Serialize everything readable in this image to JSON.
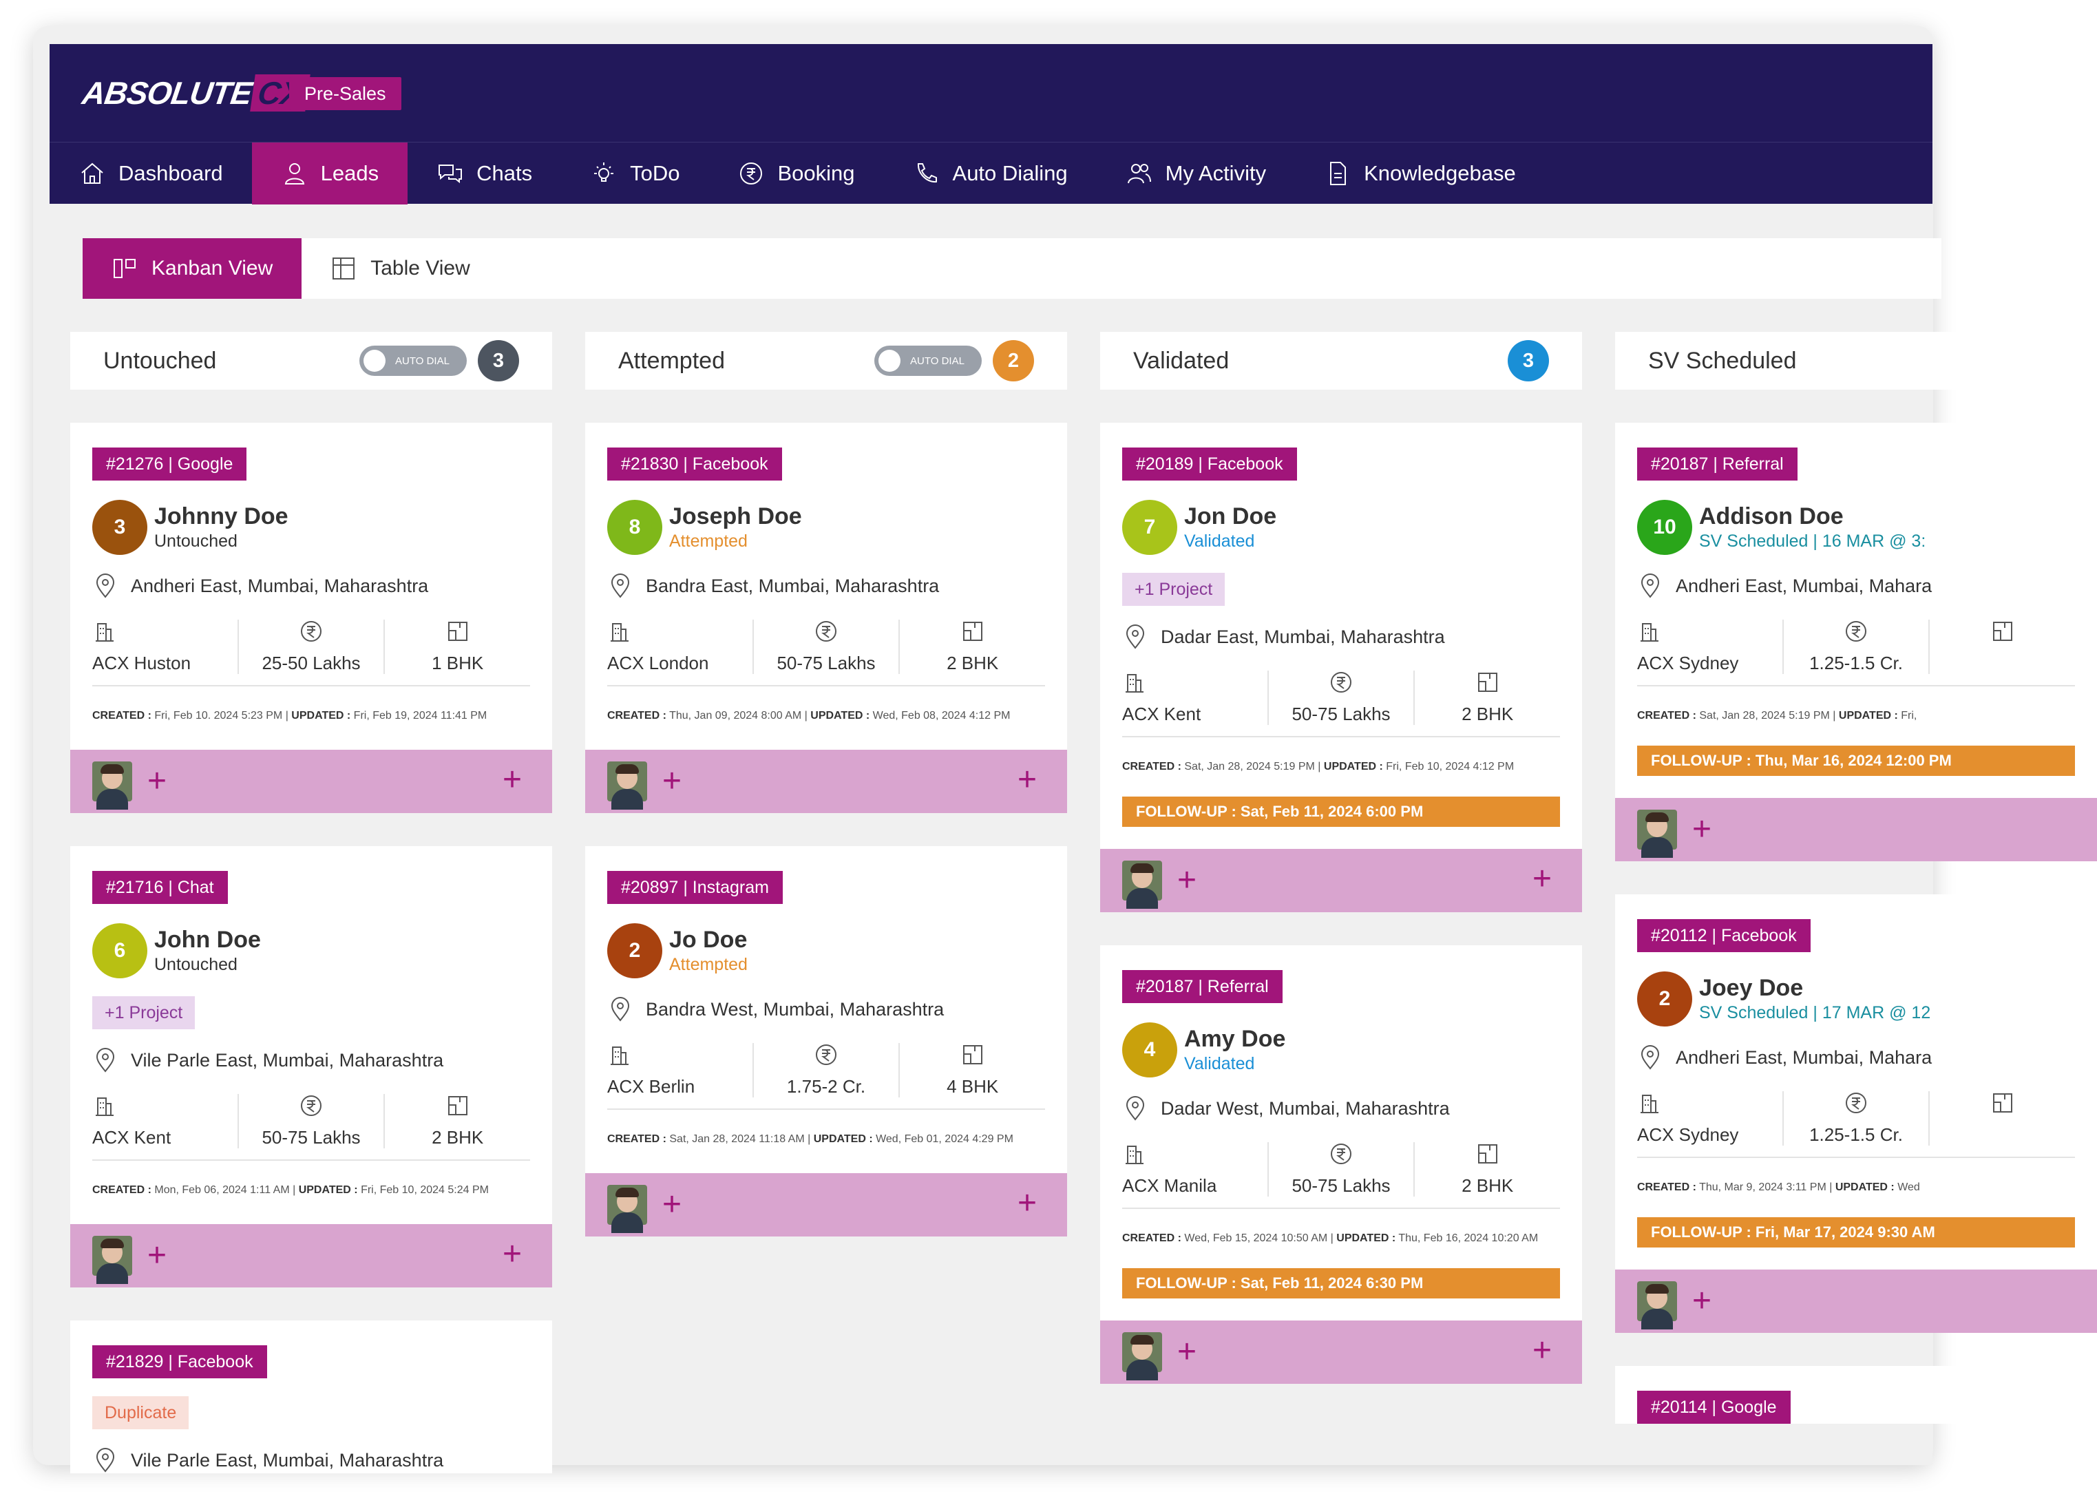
{
  "app": {
    "logo_main": "ABSOLUTE",
    "logo_accent": "CX",
    "module_badge": "Pre-Sales"
  },
  "nav": [
    {
      "label": "Dashboard",
      "icon": "home-icon"
    },
    {
      "label": "Leads",
      "icon": "user-icon",
      "active": true
    },
    {
      "label": "Chats",
      "icon": "chat-icon"
    },
    {
      "label": "ToDo",
      "icon": "bulb-icon"
    },
    {
      "label": "Booking",
      "icon": "rupee-circle-icon"
    },
    {
      "label": "Auto Dialing",
      "icon": "phone-icon"
    },
    {
      "label": "My Activity",
      "icon": "users-icon"
    },
    {
      "label": "Knowledgebase",
      "icon": "document-icon"
    }
  ],
  "views": {
    "kanban": "Kanban View",
    "table": "Table View"
  },
  "autodial_label": "AUTO DIAL",
  "colors": {
    "brand": "#a1157a",
    "navy": "#22185a",
    "orange": "#e48f2e",
    "validated": "#1a8fd6",
    "sv": "#1a8fa0"
  },
  "columns": [
    {
      "title": "Untouched",
      "count": "3",
      "count_color": "#4d5560",
      "autodial": true,
      "cards": [
        {
          "tag": "#21276 | Google",
          "num": "3",
          "num_color": "#9a520d",
          "name": "Johnny Doe",
          "status": "Untouched",
          "status_color": "#333333",
          "location": "Andheri East, Mumbai, Maharashtra",
          "project": "ACX Huston",
          "budget": "25-50 Lakhs",
          "config": "1 BHK",
          "created_label": "CREATED :",
          "created": "Fri, Feb 10. 2024 5:23 PM",
          "updated_label": "UPDATED :",
          "updated": "Fri, Feb 19, 2024  11:41 PM"
        },
        {
          "tag": "#21716 | Chat",
          "num": "6",
          "num_color": "#b8c013",
          "name": "John Doe",
          "status": "Untouched",
          "status_color": "#333333",
          "chip": "+1 Project",
          "location": "Vile Parle East, Mumbai, Maharashtra",
          "project": "ACX Kent",
          "budget": "50-75 Lakhs",
          "config": "2 BHK",
          "created_label": "CREATED :",
          "created": "Mon, Feb 06, 2024  1:11 AM",
          "updated_label": "UPDATED :",
          "updated": "Fri, Feb 10, 2024  5:24 PM"
        },
        {
          "tag": "#21829 | Facebook",
          "dup": "Duplicate",
          "location": "Vile Parle East, Mumbai, Maharashtra"
        }
      ]
    },
    {
      "title": "Attempted",
      "count": "2",
      "count_color": "#e48f2e",
      "autodial": true,
      "cards": [
        {
          "tag": "#21830 | Facebook",
          "num": "8",
          "num_color": "#7fb81a",
          "name": "Joseph Doe",
          "status": "Attempted",
          "status_color": "#e48f2e",
          "location": "Bandra East, Mumbai, Maharashtra",
          "project": "ACX London",
          "budget": "50-75 Lakhs",
          "config": "2 BHK",
          "created_label": "CREATED :",
          "created": "Thu, Jan 09, 2024  8:00 AM",
          "updated_label": "UPDATED :",
          "updated": "Wed, Feb 08, 2024  4:12 PM"
        },
        {
          "tag": "#20897 | Instagram",
          "num": "2",
          "num_color": "#a8420f",
          "name": "Jo Doe",
          "status": "Attempted",
          "status_color": "#e48f2e",
          "location": "Bandra West, Mumbai, Maharashtra",
          "project": "ACX Berlin",
          "budget": "1.75-2 Cr.",
          "config": "4 BHK",
          "created_label": "CREATED :",
          "created": "Sat, Jan 28, 2024  11:18 AM",
          "updated_label": "UPDATED :",
          "updated": "Wed, Feb 01, 2024  4:29 PM"
        }
      ]
    },
    {
      "title": "Validated",
      "count": "3",
      "count_color": "#1a8fd6",
      "autodial": false,
      "cards": [
        {
          "tag": "#20189 | Facebook",
          "num": "7",
          "num_color": "#a8c41a",
          "name": "Jon Doe",
          "status": "Validated",
          "status_color": "#1a8fd6",
          "chip": "+1 Project",
          "location": "Dadar East, Mumbai, Maharashtra",
          "project": "ACX Kent",
          "budget": "50-75 Lakhs",
          "config": "2 BHK",
          "created_label": "CREATED :",
          "created": "Sat, Jan 28, 2024  5:19 PM",
          "updated_label": "UPDATED :",
          "updated": "Fri, Feb 10, 2024  4:12 PM",
          "followup": "FOLLOW-UP : Sat, Feb 11, 2024 6:00 PM"
        },
        {
          "tag": "#20187 | Referral",
          "num": "4",
          "num_color": "#c9a10c",
          "name": "Amy Doe",
          "status": "Validated",
          "status_color": "#1a8fd6",
          "location": "Dadar West, Mumbai, Maharashtra",
          "project": "ACX Manila",
          "budget": "50-75 Lakhs",
          "config": "2 BHK",
          "created_label": "CREATED :",
          "created": "Wed, Feb 15, 2024 10:50 AM",
          "updated_label": "UPDATED :",
          "updated": "Thu, Feb 16, 2024 10:20 AM",
          "followup": "FOLLOW-UP : Sat, Feb 11, 2024 6:30 PM"
        }
      ]
    },
    {
      "title": "SV Scheduled",
      "count": "",
      "count_color": "#1a8fd6",
      "autodial": false,
      "cards": [
        {
          "tag": "#20187 | Referral",
          "num": "10",
          "num_color": "#2aa61a",
          "name": "Addison Doe",
          "status": "SV Scheduled | 16 MAR @ 3:",
          "status_color": "#1a8fa0",
          "location": "Andheri East, Mumbai, Mahara",
          "project": "ACX Sydney",
          "budget": "1.25-1.5 Cr.",
          "config": "",
          "created_label": "CREATED :",
          "created": "Sat, Jan 28, 2024  5:19 PM",
          "updated_label": "UPDATED :",
          "updated": "Fri,",
          "followup": "FOLLOW-UP : Thu, Mar 16, 2024 12:00 PM"
        },
        {
          "tag": "#20112 | Facebook",
          "num": "2",
          "num_color": "#a8420f",
          "name": "Joey Doe",
          "status": "SV Scheduled | 17 MAR @ 12",
          "status_color": "#1a8fa0",
          "location": "Andheri East, Mumbai, Mahara",
          "project": "ACX Sydney",
          "budget": "1.25-1.5 Cr.",
          "config": "",
          "created_label": "CREATED :",
          "created": "Thu, Mar 9, 2024  3:11 PM",
          "updated_label": "UPDATED :",
          "updated": "Wed",
          "followup": "FOLLOW-UP : Fri, Mar 17, 2024 9:30 AM"
        },
        {
          "tag": "#20114 | Google"
        }
      ]
    }
  ]
}
